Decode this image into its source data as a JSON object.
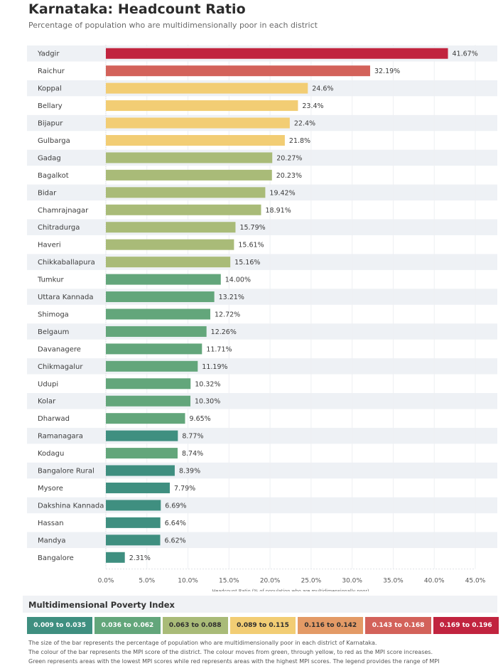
{
  "header": {
    "title": "Karnataka: Headcount Ratio",
    "subtitle": "Percentage of population who are multidimensionally poor in each district"
  },
  "chart_data": {
    "type": "bar",
    "orientation": "horizontal",
    "title": "Karnataka: Headcount Ratio",
    "subtitle": "Percentage of population who are multidimensionally poor in each district",
    "xlabel": "Headcount Ratio (% of population who are multidimensionally poor)",
    "ylabel": "",
    "xlim": [
      0,
      45
    ],
    "x_ticks": [
      0,
      5,
      10,
      15,
      20,
      25,
      30,
      35,
      40,
      45
    ],
    "x_tick_labels": [
      "0.0%",
      "5.0%",
      "10.0%",
      "15.0%",
      "20.0%",
      "25.0%",
      "30.0%",
      "35.0%",
      "40.0%",
      "45.0%"
    ],
    "grid": true,
    "legend_position": "bottom",
    "categories": [
      "Yadgir",
      "Raichur",
      "Koppal",
      "Bellary",
      "Bijapur",
      "Gulbarga",
      "Gadag",
      "Bagalkot",
      "Bidar",
      "Chamrajnagar",
      "Chitradurga",
      "Haveri",
      "Chikkaballapura",
      "Tumkur",
      "Uttara Kannada",
      "Shimoga",
      "Belgaum",
      "Davanagere",
      "Chikmagalur",
      "Udupi",
      "Kolar",
      "Dharwad",
      "Ramanagara",
      "Kodagu",
      "Bangalore Rural",
      "Mysore",
      "Dakshina Kannada",
      "Hassan",
      "Mandya",
      "Bangalore"
    ],
    "values": [
      41.67,
      32.19,
      24.6,
      23.4,
      22.4,
      21.8,
      20.27,
      20.23,
      19.42,
      18.91,
      15.79,
      15.61,
      15.16,
      14.0,
      13.21,
      12.72,
      12.26,
      11.71,
      11.19,
      10.32,
      10.3,
      9.65,
      8.77,
      8.74,
      8.39,
      7.79,
      6.69,
      6.64,
      6.62,
      2.31
    ],
    "value_labels": [
      "41.67%",
      "32.19%",
      "24.6%",
      "23.4%",
      "22.4%",
      "21.8%",
      "20.27%",
      "20.23%",
      "19.42%",
      "18.91%",
      "15.79%",
      "15.61%",
      "15.16%",
      "14.00%",
      "13.21%",
      "12.72%",
      "12.26%",
      "11.71%",
      "11.19%",
      "10.32%",
      "10.30%",
      "9.65%",
      "8.77%",
      "8.74%",
      "8.39%",
      "7.79%",
      "6.69%",
      "6.64%",
      "6.62%",
      "2.31%"
    ],
    "mpi_class": [
      6,
      5,
      3,
      3,
      3,
      3,
      2,
      2,
      2,
      2,
      2,
      2,
      2,
      1,
      1,
      1,
      1,
      1,
      1,
      1,
      1,
      1,
      0,
      1,
      0,
      0,
      0,
      0,
      0,
      0
    ]
  },
  "legend": {
    "title": "Multidimensional Poverty Index",
    "items": [
      {
        "label": "0.009 to 0.035",
        "color": "#3f8f80",
        "text_color": "#ffffff"
      },
      {
        "label": "0.036 to 0.062",
        "color": "#63a67b",
        "text_color": "#ffffff"
      },
      {
        "label": "0.063 to 0.088",
        "color": "#a9bb78",
        "text_color": "#2e2e2e"
      },
      {
        "label": "0.089 to 0.115",
        "color": "#f2cd74",
        "text_color": "#2e2e2e"
      },
      {
        "label": "0.116 to 0.142",
        "color": "#e39a66",
        "text_color": "#2e2e2e"
      },
      {
        "label": "0.143 to 0.168",
        "color": "#d3625a",
        "text_color": "#ffffff"
      },
      {
        "label": "0.169 to 0.196",
        "color": "#c1243f",
        "text_color": "#ffffff"
      }
    ]
  },
  "notes": [
    "The size of the bar represents the percentage of population who are multidimensionally poor in each district of Karnataka.",
    "The colour of the bar represents the MPI score of the district. The colour moves from green, through yellow, to red as the MPI score increases.",
    "Green represents areas with the lowest MPI scores while red represents areas with the highest MPI scores. The legend provides the range of MPI"
  ]
}
